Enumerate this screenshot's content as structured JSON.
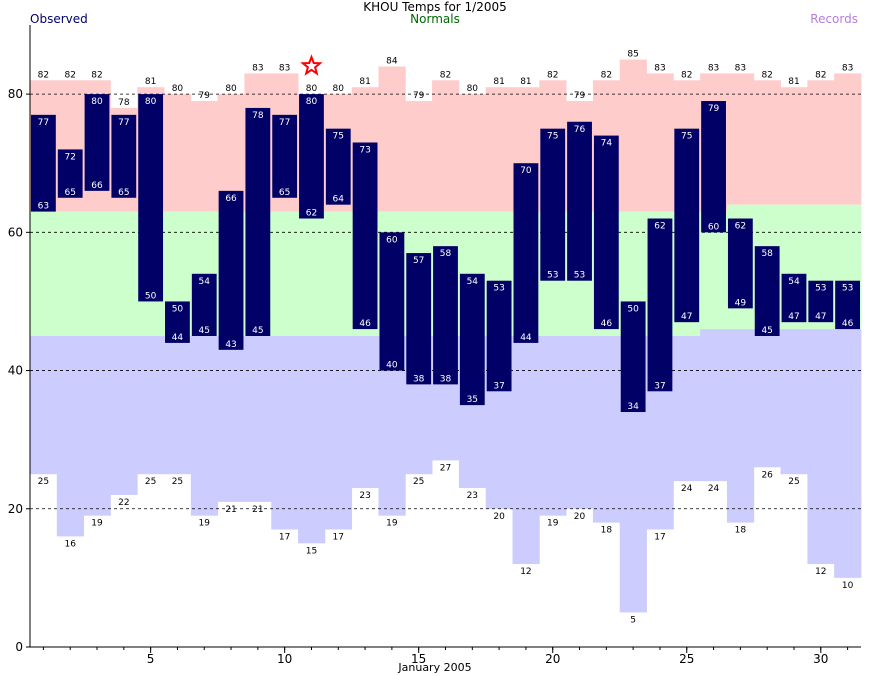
{
  "chart_data": {
    "type": "bar",
    "title": "KHOU Temps for 1/2005",
    "legend": [
      "Observed",
      "Normals",
      "Records"
    ],
    "xlabel": "January 2005",
    "ylim": [
      0,
      90
    ],
    "xlim": [
      0.5,
      31.5
    ],
    "yticks": [
      0,
      20,
      40,
      60,
      80
    ],
    "xticks": [
      5,
      10,
      15,
      20,
      25,
      30
    ],
    "grid": "dashed horizontal at 20, 40, 60, 80",
    "colors": {
      "observed": "#000066",
      "normal": "#ccffcc",
      "record_high_band": "#ffcccc",
      "record_low_band": "#ccccff",
      "star": "#ff0000"
    },
    "days": [
      1,
      2,
      3,
      4,
      5,
      6,
      7,
      8,
      9,
      10,
      11,
      12,
      13,
      14,
      15,
      16,
      17,
      18,
      19,
      20,
      21,
      22,
      23,
      24,
      25,
      26,
      27,
      28,
      29,
      30,
      31
    ],
    "observed_high": [
      77,
      72,
      80,
      77,
      80,
      50,
      54,
      66,
      78,
      77,
      80,
      75,
      73,
      60,
      57,
      58,
      54,
      53,
      70,
      75,
      76,
      74,
      50,
      62,
      75,
      79,
      62,
      58,
      54,
      53,
      53
    ],
    "observed_low": [
      63,
      65,
      66,
      65,
      50,
      44,
      45,
      43,
      45,
      65,
      62,
      64,
      46,
      40,
      38,
      38,
      35,
      37,
      44,
      53,
      53,
      46,
      34,
      37,
      47,
      60,
      49,
      45,
      47,
      47,
      46
    ],
    "record_high": [
      82,
      82,
      82,
      78,
      81,
      80,
      79,
      80,
      83,
      83,
      80,
      80,
      81,
      84,
      79,
      82,
      80,
      81,
      81,
      82,
      79,
      82,
      85,
      83,
      82,
      83,
      83,
      82,
      81,
      82,
      83
    ],
    "record_low": [
      25,
      16,
      19,
      22,
      25,
      25,
      19,
      21,
      21,
      17,
      15,
      17,
      23,
      19,
      25,
      27,
      23,
      20,
      12,
      19,
      20,
      18,
      5,
      17,
      24,
      24,
      18,
      26,
      25,
      12,
      10
    ],
    "normal_high": [
      63,
      63,
      63,
      63,
      63,
      63,
      63,
      63,
      63,
      63,
      63,
      63,
      63,
      63,
      63,
      63,
      63,
      63,
      63,
      63,
      63,
      63,
      63,
      63,
      63,
      63,
      64,
      64,
      64,
      64,
      64
    ],
    "normal_low": [
      45,
      45,
      45,
      45,
      45,
      45,
      45,
      45,
      45,
      45,
      45,
      45,
      45,
      45,
      45,
      45,
      45,
      45,
      45,
      45,
      45,
      45,
      45,
      45,
      45,
      46,
      46,
      46,
      46,
      46,
      46
    ],
    "record_marker": {
      "day": 11,
      "value": 80,
      "symbol": "star"
    }
  }
}
